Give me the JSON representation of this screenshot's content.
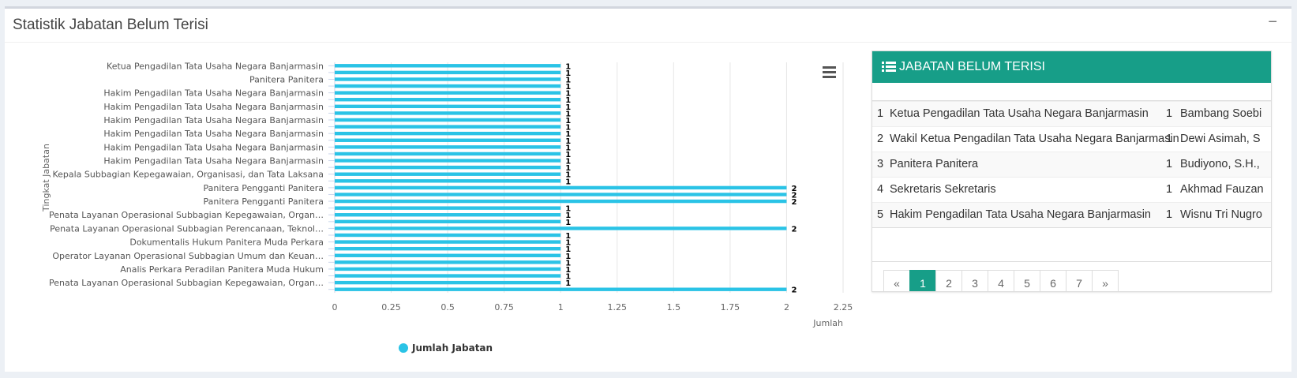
{
  "panel": {
    "title": "Statistik Jabatan Belum Terisi",
    "collapse": "−"
  },
  "chart_data": {
    "type": "hbar",
    "y_label": "Tingkat Jabatan",
    "x_label": "Jumlah",
    "categories": [
      "Ketua Pengadilan Tata Usaha Negara Banjarmasin",
      null,
      "Panitera Panitera",
      null,
      "Hakim Pengadilan Tata Usaha Negara Banjarmasin",
      null,
      "Hakim Pengadilan Tata Usaha Negara Banjarmasin",
      null,
      "Hakim Pengadilan Tata Usaha Negara Banjarmasin",
      null,
      "Hakim Pengadilan Tata Usaha Negara Banjarmasin",
      null,
      "Hakim Pengadilan Tata Usaha Negara Banjarmasin",
      null,
      "Hakim Pengadilan Tata Usaha Negara Banjarmasin",
      null,
      "Kepala Subbagian Kepegawaian, Organisasi, dan Tata Laksana",
      null,
      "Panitera Pengganti Panitera",
      null,
      "Panitera Pengganti Panitera",
      null,
      "Penata Layanan Operasional Subbagian Kepegawaian, Organ…",
      null,
      "Penata Layanan Operasional Subbagian Perencanaan, Teknol…",
      null,
      "Dokumentalis Hukum Panitera Muda Perkara",
      null,
      "Operator Layanan Operasional Subbagian Umum dan Keuan…",
      null,
      "Analis Perkara Peradilan Panitera Muda Hukum",
      null,
      "Penata Layanan Operasional Subbagian Kepegawaian, Organ…",
      null
    ],
    "series": [
      {
        "name": "Jumlah Jabatan",
        "color": "#2ac3e6",
        "values": [
          1,
          1,
          1,
          1,
          1,
          1,
          1,
          1,
          1,
          1,
          1,
          1,
          1,
          1,
          1,
          1,
          1,
          1,
          2,
          2,
          2,
          1,
          1,
          1,
          2,
          1,
          1,
          1,
          1,
          1,
          1,
          1,
          1,
          2
        ]
      }
    ],
    "xlim": [
      0,
      2.25
    ],
    "xticks": [
      0,
      0.25,
      0.5,
      0.75,
      1,
      1.25,
      1.5,
      1.75,
      2,
      2.25
    ],
    "grid": true
  },
  "table": {
    "header": "JABATAN BELUM TERISI",
    "rows": [
      [
        1,
        "Ketua Pengadilan Tata Usaha Negara Banjarmasin",
        1,
        "Bambang Soebi"
      ],
      [
        2,
        "Wakil Ketua Pengadilan Tata Usaha Negara Banjarmasin",
        1,
        "Dewi Asimah, S"
      ],
      [
        3,
        "Panitera Panitera",
        1,
        "Budiyono, S.H.,"
      ],
      [
        4,
        "Sekretaris Sekretaris",
        1,
        "Akhmad Fauzan"
      ],
      [
        5,
        "Hakim Pengadilan Tata Usaha Negara Banjarmasin",
        1,
        "Wisnu Tri Nugro"
      ]
    ]
  },
  "pagination": {
    "prev": "«",
    "pages": [
      1,
      2,
      3,
      4,
      5,
      6,
      7
    ],
    "next": "»",
    "active": 1
  }
}
